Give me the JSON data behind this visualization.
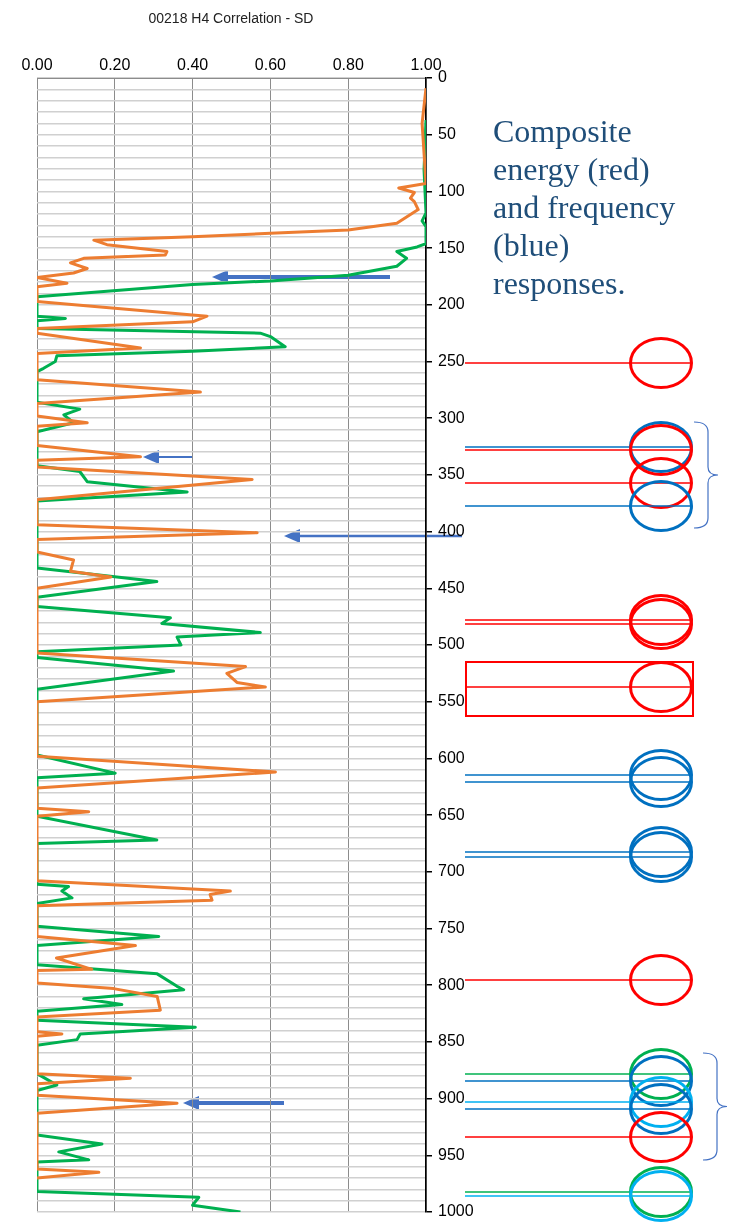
{
  "chart_data": {
    "type": "line",
    "title": "00218 H4 Correlation - SD",
    "annotations": [
      "Composite energy (red) and frequency (blue) responses."
    ],
    "xlim": [
      0,
      1
    ],
    "xticks": [
      {
        "value": 0,
        "label": "0.00"
      },
      {
        "value": 0.2,
        "label": "0.20"
      },
      {
        "value": 0.4,
        "label": "0.40"
      },
      {
        "value": 0.6,
        "label": "0.60"
      },
      {
        "value": 0.8,
        "label": "0.80"
      },
      {
        "value": 1,
        "label": "1.00"
      }
    ],
    "ylim": [
      1000,
      0
    ],
    "yticks": [
      0,
      {
        "value": 10,
        "label": null
      },
      {
        "value": 20,
        "label": null
      },
      {
        "value": 30,
        "label": null
      },
      {
        "value": 40,
        "label": null
      },
      50,
      {
        "value": 60,
        "label": null
      },
      {
        "value": 70,
        "label": null
      },
      {
        "value": 80,
        "label": null
      },
      {
        "value": 90,
        "label": null
      },
      100,
      {
        "value": 110,
        "label": null
      },
      {
        "value": 120,
        "label": null
      },
      {
        "value": 130,
        "label": null
      },
      {
        "value": 140,
        "label": null
      },
      150,
      {
        "value": 160,
        "label": null
      },
      {
        "value": 170,
        "label": null
      },
      {
        "value": 180,
        "label": null
      },
      {
        "value": 190,
        "label": null
      },
      200,
      {
        "value": 210,
        "label": null
      },
      {
        "value": 220,
        "label": null
      },
      {
        "value": 230,
        "label": null
      },
      {
        "value": 240,
        "label": null
      },
      250,
      {
        "value": 260,
        "label": null
      },
      {
        "value": 270,
        "label": null
      },
      {
        "value": 280,
        "label": null
      },
      {
        "value": 290,
        "label": null
      },
      300,
      {
        "value": 310,
        "label": null
      },
      {
        "value": 320,
        "label": null
      },
      {
        "value": 330,
        "label": null
      },
      {
        "value": 340,
        "label": null
      },
      350,
      {
        "value": 360,
        "label": null
      },
      {
        "value": 370,
        "label": null
      },
      {
        "value": 380,
        "label": null
      },
      {
        "value": 390,
        "label": null
      },
      400,
      {
        "value": 410,
        "label": null
      },
      {
        "value": 420,
        "label": null
      },
      {
        "value": 430,
        "label": null
      },
      {
        "value": 440,
        "label": null
      },
      450,
      {
        "value": 460,
        "label": null
      },
      {
        "value": 470,
        "label": null
      },
      {
        "value": 480,
        "label": null
      },
      {
        "value": 490,
        "label": null
      },
      500,
      {
        "value": 510,
        "label": null
      },
      {
        "value": 520,
        "label": null
      },
      {
        "value": 530,
        "label": null
      },
      {
        "value": 540,
        "label": null
      },
      550,
      {
        "value": 560,
        "label": null
      },
      {
        "value": 570,
        "label": null
      },
      {
        "value": 580,
        "label": null
      },
      {
        "value": 590,
        "label": null
      },
      600,
      {
        "value": 610,
        "label": null
      },
      {
        "value": 620,
        "label": null
      },
      {
        "value": 630,
        "label": null
      },
      {
        "value": 640,
        "label": null
      },
      650,
      {
        "value": 660,
        "label": null
      },
      {
        "value": 670,
        "label": null
      },
      {
        "value": 680,
        "label": null
      },
      {
        "value": 690,
        "label": null
      },
      700,
      {
        "value": 710,
        "label": null
      },
      {
        "value": 720,
        "label": null
      },
      {
        "value": 730,
        "label": null
      },
      {
        "value": 740,
        "label": null
      },
      750,
      {
        "value": 760,
        "label": null
      },
      {
        "value": 770,
        "label": null
      },
      {
        "value": 780,
        "label": null
      },
      {
        "value": 790,
        "label": null
      },
      800,
      {
        "value": 810,
        "label": null
      },
      {
        "value": 820,
        "label": null
      },
      {
        "value": 830,
        "label": null
      },
      {
        "value": 840,
        "label": null
      },
      850,
      {
        "value": 860,
        "label": null
      },
      {
        "value": 870,
        "label": null
      },
      {
        "value": 880,
        "label": null
      },
      {
        "value": 890,
        "label": null
      },
      900,
      {
        "value": 910,
        "label": null
      },
      {
        "value": 920,
        "label": null
      },
      {
        "value": 930,
        "label": null
      },
      {
        "value": 940,
        "label": null
      },
      950,
      {
        "value": 960,
        "label": null
      },
      {
        "value": 970,
        "label": null
      },
      {
        "value": 980,
        "label": null
      },
      {
        "value": 990,
        "label": null
      },
      1000
    ],
    "grid": true,
    "legend": false,
    "marker": "none",
    "line_style": "solid",
    "series": [
      {
        "type": "line",
        "color": "#ed7d31",
        "x": [
          1.0,
          0.99,
          1.0,
          0.93,
          0.97,
          0.96,
          0.97,
          0.98,
          0.925,
          0.8,
          0.6,
          0.4,
          0.146,
          0.18,
          0.334,
          0.33,
          0.12,
          0.086,
          0.129,
          0.094,
          0,
          0.077,
          0,
          0,
          0.437,
          0.4,
          0,
          0,
          0.266,
          0,
          0,
          0.42,
          0,
          0,
          0.129,
          0,
          0,
          0.266,
          0,
          0,
          0.553,
          0,
          0,
          0.566,
          0,
          0,
          0.094,
          0.086,
          0.19,
          0,
          0,
          0.536,
          0.488,
          0.514,
          0.587,
          0,
          0,
          0.613,
          0,
          0,
          0.133,
          0,
          0,
          0.497,
          0.445,
          0.45,
          0,
          0,
          0.253,
          0.05,
          0.141,
          0,
          0,
          0.197,
          0.309,
          0.317,
          0,
          0,
          0.064,
          0,
          0,
          0.24,
          0,
          0,
          0.36,
          0,
          0,
          0.159,
          0
        ],
        "values": [
          9,
          40,
          93,
          97,
          101,
          106,
          109,
          116,
          128,
          134,
          137,
          140,
          143,
          147,
          153,
          156,
          159,
          163,
          168,
          172,
          176,
          181,
          184,
          197,
          210,
          215,
          221,
          225,
          238,
          243,
          266,
          277,
          287,
          298,
          304,
          307,
          324,
          334,
          337,
          343,
          354,
          372,
          394,
          401,
          407,
          418,
          425,
          435,
          440,
          450,
          507,
          519,
          525,
          533,
          537,
          550,
          598,
          612,
          626,
          644,
          647,
          651,
          708,
          717,
          720,
          725,
          730,
          757,
          765,
          776,
          786,
          787,
          798,
          803,
          810,
          822,
          828,
          841,
          843,
          845,
          878,
          882,
          887,
          897,
          904,
          913,
          962,
          965,
          970
        ]
      },
      {
        "type": "line",
        "color": "#00b050",
        "x": [
          1.0,
          0.995,
          1.0,
          0.99,
          1.0,
          1.0,
          0.977,
          0.925,
          0.95,
          0.925,
          0.8,
          0.6,
          0.4,
          0,
          0,
          0.073,
          0,
          0,
          0.574,
          0.6,
          0.638,
          0.4,
          0.051,
          0.047,
          0.017,
          0,
          0,
          0.11,
          0.069,
          0.094,
          0,
          0,
          0.11,
          0.129,
          0.386,
          0,
          0,
          0.308,
          0,
          0,
          0.343,
          0.321,
          0.574,
          0.36,
          0.37,
          0,
          0,
          0.351,
          0,
          0,
          0.201,
          0,
          0,
          0.308,
          0,
          0,
          0.081,
          0.064,
          0.09,
          0,
          0,
          0.313,
          0,
          0,
          0.309,
          0.36,
          0.377,
          0.12,
          0.218,
          0,
          0,
          0.407,
          0.111,
          0.103,
          0,
          0,
          0.051,
          0,
          0,
          0.167,
          0.056,
          0.133,
          0,
          0,
          0.416,
          0.4,
          0.523
        ],
        "values": [
          37,
          81,
          119,
          126,
          131,
          146,
          149,
          153,
          159,
          166,
          174,
          179,
          182,
          193,
          210,
          212,
          214,
          221,
          225,
          228,
          237,
          241,
          245,
          250,
          256,
          259,
          286,
          292,
          297,
          304,
          312,
          342,
          347,
          356,
          365,
          373,
          432,
          444,
          458,
          466,
          476,
          481,
          489,
          493,
          500,
          506,
          511,
          523,
          539,
          597,
          613,
          617,
          651,
          672,
          675,
          711,
          713,
          717,
          723,
          728,
          748,
          757,
          765,
          782,
          790,
          801,
          804,
          812,
          817,
          823,
          831,
          837,
          843,
          848,
          853,
          878,
          888,
          893,
          932,
          940,
          947,
          954,
          956,
          982,
          987,
          994,
          1000
        ]
      }
    ]
  }
}
